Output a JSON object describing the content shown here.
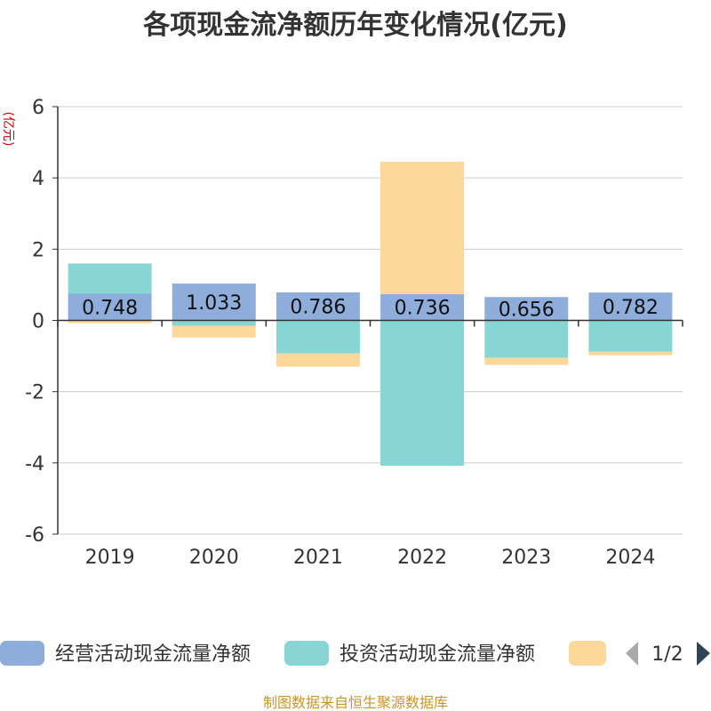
{
  "chart_data": {
    "type": "bar",
    "stacked": true,
    "title": "各项现金流净额历年变化情况(亿元)",
    "ylabel": "(亿元)",
    "xlabel": "",
    "ylim": [
      -6,
      6
    ],
    "yticks": [
      6,
      4,
      2,
      0,
      -2,
      -4,
      -6
    ],
    "categories": [
      "2019",
      "2020",
      "2021",
      "2022",
      "2023",
      "2024"
    ],
    "series": [
      {
        "name": "经营活动现金流量净额",
        "color": "#8eaddb",
        "values": [
          0.748,
          1.033,
          0.786,
          0.736,
          0.656,
          0.782
        ],
        "labels": [
          "0.748",
          "1.033",
          "0.786",
          "0.736",
          "0.656",
          "0.782"
        ]
      },
      {
        "name": "投资活动现金流量净额",
        "color": "#88d5d6",
        "values": [
          0.85,
          -0.15,
          -0.93,
          -4.08,
          -1.05,
          -0.88
        ]
      },
      {
        "name": "",
        "color": "#fdd89a",
        "values": [
          -0.08,
          -0.33,
          -0.37,
          3.72,
          -0.2,
          -0.1
        ]
      }
    ],
    "legend": {
      "position": "bottom",
      "page": "1/2"
    },
    "source": "制图数据来自恒生聚源数据库"
  }
}
